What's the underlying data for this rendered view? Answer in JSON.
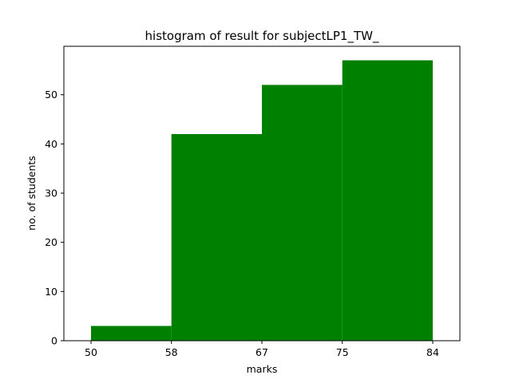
{
  "chart_data": {
    "type": "bar",
    "title": "histogram of result for subjectLP1_TW_",
    "xlabel": "marks",
    "ylabel": "no. of students",
    "bins": [
      {
        "start": 50,
        "end": 58,
        "count": 3
      },
      {
        "start": 58,
        "end": 67,
        "count": 42
      },
      {
        "start": 67,
        "end": 75,
        "count": 52
      },
      {
        "start": 75,
        "end": 84,
        "count": 57
      }
    ],
    "xticks": [
      50,
      58,
      67,
      75,
      84
    ],
    "yticks": [
      0,
      10,
      20,
      30,
      40,
      50
    ],
    "xlim": [
      47.3,
      86.7
    ],
    "ylim": [
      0,
      59.85
    ],
    "bar_color": "#008000",
    "grid": false
  }
}
